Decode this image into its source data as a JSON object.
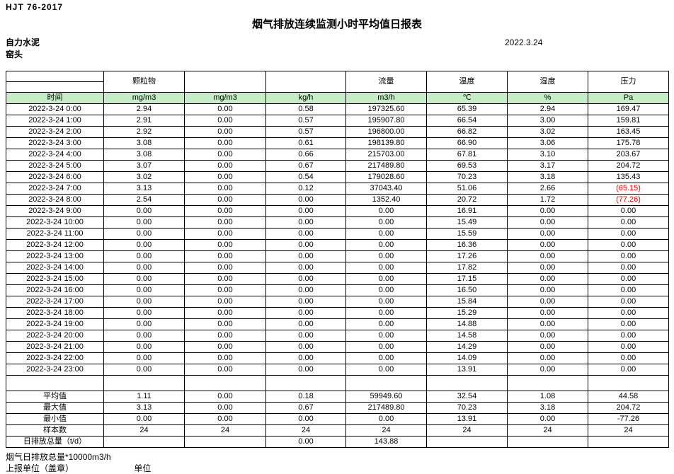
{
  "page": {
    "doc_code": "HJT  76-2017",
    "title": "烟气排放连续监测小时平均值日报表",
    "date": "2022.3.24",
    "company": "自力水泥",
    "station": "窑头"
  },
  "colors": {
    "unit_row_bg": "#c6eec6",
    "negative_value": "#ff0000",
    "border": "#000000"
  },
  "table": {
    "group_headers": [
      "",
      "颗粒物",
      "",
      "",
      "流量",
      "温度",
      "湿度",
      "压力"
    ],
    "unit_row": [
      "时间",
      "mg/m3",
      "mg/m3",
      "kg/h",
      "m3/h",
      "℃",
      "%",
      "Pa"
    ],
    "rows": [
      [
        "2022-3-24 0:00",
        "2.94",
        "0.00",
        "0.58",
        "197325.60",
        "65.39",
        "2.94",
        "169.47"
      ],
      [
        "2022-3-24 1:00",
        "2.91",
        "0.00",
        "0.57",
        "195907.80",
        "66.54",
        "3.00",
        "159.81"
      ],
      [
        "2022-3-24 2:00",
        "2.92",
        "0.00",
        "0.57",
        "196800.00",
        "66.82",
        "3.02",
        "163.45"
      ],
      [
        "2022-3-24 3:00",
        "3.08",
        "0.00",
        "0.61",
        "198139.80",
        "66.90",
        "3.06",
        "175.78"
      ],
      [
        "2022-3-24 4:00",
        "3.08",
        "0.00",
        "0.66",
        "215703.00",
        "67.81",
        "3.10",
        "203.67"
      ],
      [
        "2022-3-24 5:00",
        "3.07",
        "0.00",
        "0.67",
        "217489.80",
        "69.53",
        "3.17",
        "204.72"
      ],
      [
        "2022-3-24 6:00",
        "3.02",
        "0.00",
        "0.54",
        "179028.60",
        "70.23",
        "3.18",
        "135.43"
      ],
      [
        "2022-3-24 7:00",
        "3.13",
        "0.00",
        "0.12",
        "37043.40",
        "51.06",
        "2.66",
        "(65.15)"
      ],
      [
        "2022-3-24 8:00",
        "2.54",
        "0.00",
        "0.00",
        "1352.40",
        "20.72",
        "1.72",
        "(77.26)"
      ],
      [
        "2022-3-24 9:00",
        "0.00",
        "0.00",
        "0.00",
        "0.00",
        "16.91",
        "0.00",
        "0.00"
      ],
      [
        "2022-3-24 10:00",
        "0.00",
        "0.00",
        "0.00",
        "0.00",
        "15.49",
        "0.00",
        "0.00"
      ],
      [
        "2022-3-24 11:00",
        "0.00",
        "0.00",
        "0.00",
        "0.00",
        "15.59",
        "0.00",
        "0.00"
      ],
      [
        "2022-3-24 12:00",
        "0.00",
        "0.00",
        "0.00",
        "0.00",
        "16.36",
        "0.00",
        "0.00"
      ],
      [
        "2022-3-24 13:00",
        "0.00",
        "0.00",
        "0.00",
        "0.00",
        "17.26",
        "0.00",
        "0.00"
      ],
      [
        "2022-3-24 14:00",
        "0.00",
        "0.00",
        "0.00",
        "0.00",
        "17.82",
        "0.00",
        "0.00"
      ],
      [
        "2022-3-24 15:00",
        "0.00",
        "0.00",
        "0.00",
        "0.00",
        "17.15",
        "0.00",
        "0.00"
      ],
      [
        "2022-3-24 16:00",
        "0.00",
        "0.00",
        "0.00",
        "0.00",
        "16.50",
        "0.00",
        "0.00"
      ],
      [
        "2022-3-24 17:00",
        "0.00",
        "0.00",
        "0.00",
        "0.00",
        "15.84",
        "0.00",
        "0.00"
      ],
      [
        "2022-3-24 18:00",
        "0.00",
        "0.00",
        "0.00",
        "0.00",
        "15.29",
        "0.00",
        "0.00"
      ],
      [
        "2022-3-24 19:00",
        "0.00",
        "0.00",
        "0.00",
        "0.00",
        "14.88",
        "0.00",
        "0.00"
      ],
      [
        "2022-3-24 20:00",
        "0.00",
        "0.00",
        "0.00",
        "0.00",
        "14.58",
        "0.00",
        "0.00"
      ],
      [
        "2022-3-24 21:00",
        "0.00",
        "0.00",
        "0.00",
        "0.00",
        "14.29",
        "0.00",
        "0.00"
      ],
      [
        "2022-3-24 22:00",
        "0.00",
        "0.00",
        "0.00",
        "0.00",
        "14.09",
        "0.00",
        "0.00"
      ],
      [
        "2022-3-24 23:00",
        "0.00",
        "0.00",
        "0.00",
        "0.00",
        "13.91",
        "0.00",
        "0.00"
      ]
    ],
    "summary": [
      {
        "label": "平均值",
        "values": [
          "1.11",
          "0.00",
          "0.18",
          "59949.60",
          "32.54",
          "1.08",
          "44.58"
        ]
      },
      {
        "label": "最大值",
        "values": [
          "3.13",
          "0.00",
          "0.67",
          "217489.80",
          "70.23",
          "3.18",
          "204.72"
        ]
      },
      {
        "label": "最小值",
        "values": [
          "0.00",
          "0.00",
          "0.00",
          "0.00",
          "13.91",
          "0.00",
          "-77.26"
        ]
      },
      {
        "label": "样本数",
        "values": [
          "24",
          "24",
          "24",
          "24",
          "24",
          "24",
          "24"
        ]
      },
      {
        "label": "日排放总量（t/d）",
        "values": [
          "",
          "",
          "0.00",
          "143.88",
          "",
          "",
          ""
        ]
      }
    ]
  },
  "footer": {
    "note": "烟气日排放总量*10000m3/h",
    "report_unit_label": "上报单位（盖章）",
    "unit_label": "单位"
  }
}
